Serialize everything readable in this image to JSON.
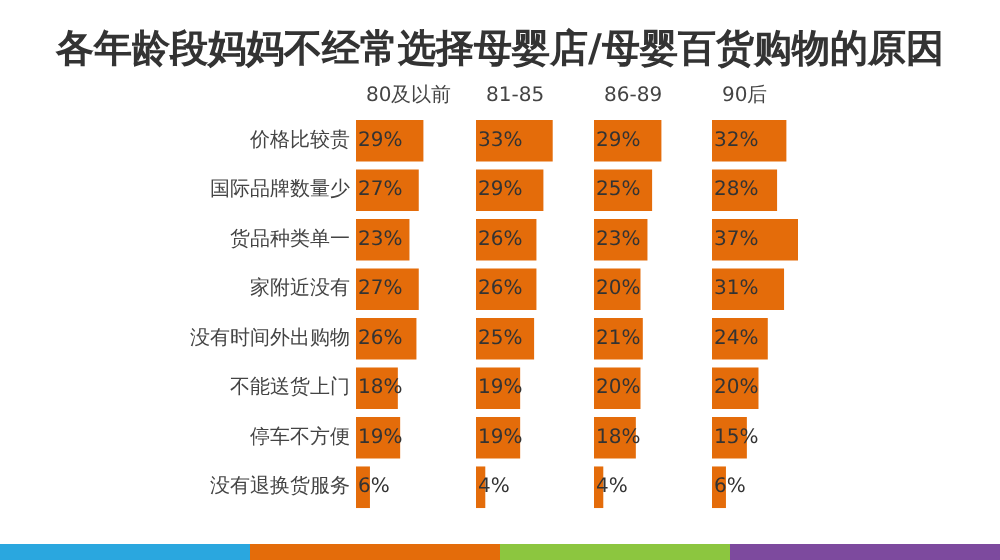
{
  "chart_data": [
    {
      "type": "other",
      "title": "各年龄段妈妈不经常选择母婴店/母婴百货购物的原因"
    },
    {
      "type": "bar",
      "orientation": "horizontal",
      "title": "80及以前",
      "categories": [
        "价格比较贵",
        "国际品牌数量少",
        "货品种类单一",
        "家附近没有",
        "没有时间外出购物",
        "不能送货上门",
        "停车不方便",
        "没有退换货服务"
      ],
      "values": [
        29,
        27,
        23,
        27,
        26,
        18,
        19,
        6
      ],
      "value_labels": [
        "29%",
        "27%",
        "23%",
        "27%",
        "26%",
        "18%",
        "19%",
        "6%"
      ],
      "color": "#e46c0a",
      "tick_labels": "y"
    },
    {
      "type": "bar",
      "orientation": "horizontal",
      "title": "81-85",
      "categories": [
        null,
        null,
        null,
        null,
        null,
        null,
        null,
        null
      ],
      "values": [
        33,
        29,
        26,
        26,
        25,
        19,
        19,
        4
      ],
      "value_labels": [
        "33%",
        "29%",
        "26%",
        "26%",
        "25%",
        "19%",
        "19%",
        "4%"
      ],
      "color": "#e46c0a",
      "tick_labels": false
    },
    {
      "type": "bar",
      "orientation": "horizontal",
      "title": "86-89",
      "categories": [
        null,
        null,
        null,
        null,
        null,
        null,
        null,
        null
      ],
      "values": [
        29,
        25,
        23,
        20,
        21,
        20,
        18,
        4
      ],
      "value_labels": [
        "29%",
        "25%",
        "23%",
        "20%",
        "21%",
        "20%",
        "18%",
        "4%"
      ],
      "color": "#e46c0a",
      "tick_labels": false
    },
    {
      "type": "bar",
      "orientation": "horizontal",
      "title": "90后",
      "categories": [
        null,
        null,
        null,
        null,
        null,
        null,
        null,
        null
      ],
      "values": [
        32,
        28,
        37,
        31,
        24,
        20,
        15,
        6
      ],
      "value_labels": [
        "32%",
        "28%",
        "37%",
        "31%",
        "24%",
        "20%",
        "15%",
        "6%"
      ],
      "color": "#e46c0a",
      "tick_labels": false
    }
  ]
}
